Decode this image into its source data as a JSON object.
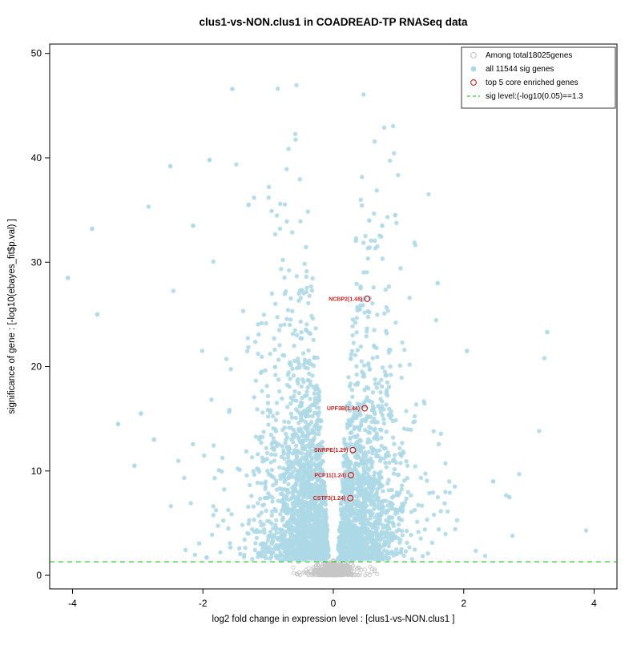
{
  "chart_data": {
    "type": "scatter",
    "subtype": "volcano-plot",
    "title": "clus1-vs-NON.clus1 in COADREAD-TP RNASeq data",
    "xlabel": "log2 fold change in expression level : [clus1-vs-NON.clus1 ]",
    "ylabel": "significance of gene : [-log10(ebayes_fit$p.val) ]",
    "xlim": [
      -4.35,
      4.35
    ],
    "ylim": [
      -1.3,
      50.9
    ],
    "xticks": [
      -4,
      -2,
      0,
      2,
      4
    ],
    "yticks": [
      0,
      10,
      20,
      30,
      40,
      50
    ],
    "grid": false,
    "legend_position": "top-right",
    "legend": [
      {
        "label": "Among total18025genes",
        "marker": "open-circle",
        "color": "#c3c3c3"
      },
      {
        "label": "all 11544 sig genes",
        "marker": "filled-circle",
        "color": "#add8e6"
      },
      {
        "label": "top 5 core enriched genes",
        "marker": "open-circle",
        "color": "#cc2222"
      },
      {
        "label": "sig level:(-log10(0.05)==1.3",
        "marker": "dashed-line",
        "color": "#00bb00"
      }
    ],
    "sig_line": {
      "y": 1.3,
      "color": "#00bb00",
      "style": "dashed"
    },
    "highlighted_genes": [
      {
        "name": "NCBP2(1.48)",
        "x": 0.52,
        "y": 26.5
      },
      {
        "name": "UPF3B(1.44)",
        "x": 0.48,
        "y": 16.0
      },
      {
        "name": "SNRPE(1.29)",
        "x": 0.3,
        "y": 12.0
      },
      {
        "name": "PCF11(1.24)",
        "x": 0.27,
        "y": 9.6
      },
      {
        "name": "CSTF3(1.24)",
        "x": 0.26,
        "y": 7.4
      }
    ],
    "notable_points": [
      {
        "x": -4.07,
        "y": 28.5
      },
      {
        "x": -3.7,
        "y": 33.2
      },
      {
        "x": -3.62,
        "y": 25.0
      },
      {
        "x": -3.3,
        "y": 14.5
      },
      {
        "x": -2.95,
        "y": 15.5
      },
      {
        "x": -3.05,
        "y": 10.5
      },
      {
        "x": -2.5,
        "y": 39.2
      },
      {
        "x": -2.15,
        "y": 33.5
      },
      {
        "x": -1.9,
        "y": 39.8
      },
      {
        "x": -1.55,
        "y": 46.6
      },
      {
        "x": -1.3,
        "y": 35.5
      },
      {
        "x": -2.75,
        "y": 13.0
      },
      {
        "x": 0.95,
        "y": 34.5
      },
      {
        "x": 0.75,
        "y": 33.5
      },
      {
        "x": 0.55,
        "y": 34.0
      },
      {
        "x": 2.05,
        "y": 21.5
      },
      {
        "x": 2.45,
        "y": 9.0
      },
      {
        "x": 2.7,
        "y": 7.5
      },
      {
        "x": 3.28,
        "y": 23.3
      },
      {
        "x": 1.6,
        "y": 28.0
      }
    ],
    "point_cloud": {
      "seed": 42,
      "n_sig": 3200,
      "n_nonsig": 780,
      "sig_color": "#add8e6",
      "nonsig_color": "#c6c6c6",
      "sig_y_min": 1.5,
      "sig_y_exp_mean": 6.8,
      "sig_y_max": 47,
      "gap_base": 0.05,
      "gap_slope": 0.009,
      "spread_sd": 0.42,
      "tail_prob": 0.1,
      "tail_mean": 0.55,
      "left_fraction": 0.53,
      "nonsig_x_sd": 0.13,
      "nonsig_x_wide_sd": 0.3,
      "nonsig_y_sd": 0.5,
      "nonsig_y_max": 1.45
    }
  }
}
